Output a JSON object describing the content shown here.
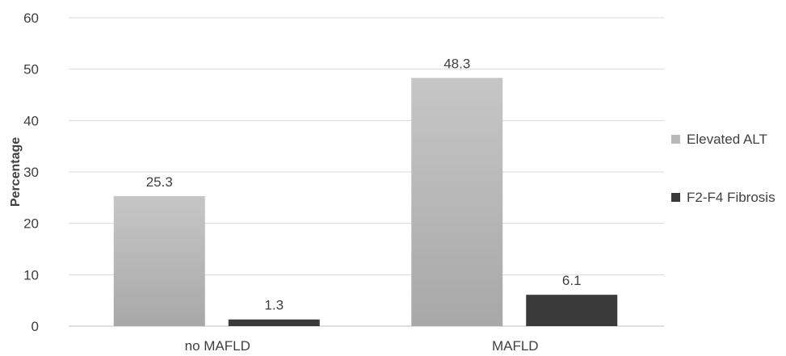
{
  "chart_data": {
    "type": "bar",
    "categories": [
      "no MAFLD",
      "MAFLD"
    ],
    "series": [
      {
        "name": "Elevated ALT",
        "values": [
          25.3,
          48.3
        ],
        "labels": [
          "25.3",
          "48.3"
        ],
        "color": "#b3b3b3"
      },
      {
        "name": "F2-F4 Fibrosis",
        "values": [
          1.3,
          6.1
        ],
        "labels": [
          "1.3",
          "6.1"
        ],
        "color": "#3a3a3a"
      }
    ],
    "title": "",
    "xlabel": "",
    "ylabel": "Percentage",
    "ylim": [
      0,
      60
    ],
    "yticks": [
      0,
      10,
      20,
      30,
      40,
      50,
      60
    ],
    "grid": true,
    "legend_position": "right"
  }
}
